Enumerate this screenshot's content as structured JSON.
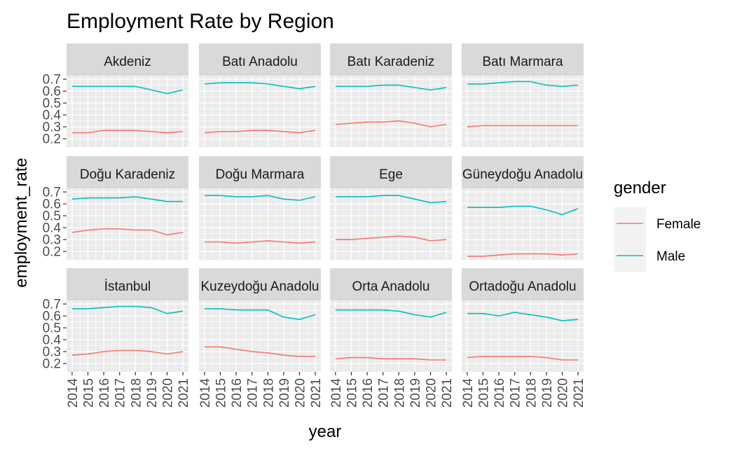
{
  "chart_data": {
    "type": "line",
    "title": "Employment Rate by Region",
    "xlabel": "year",
    "ylabel": "employment_rate",
    "x": [
      2014,
      2015,
      2016,
      2017,
      2018,
      2019,
      2020,
      2021
    ],
    "ylim": [
      0.13,
      0.73
    ],
    "yticks": [
      0.2,
      0.3,
      0.4,
      0.5,
      0.6,
      0.7
    ],
    "ytick_labels": [
      "0.2",
      "0.3",
      "0.4",
      "0.5",
      "0.6",
      "0.7"
    ],
    "grid": true,
    "legend": {
      "title": "gender",
      "position": "right",
      "entries": [
        {
          "name": "Female",
          "color": "#F8766D"
        },
        {
          "name": "Male",
          "color": "#00BFC4"
        }
      ]
    },
    "panels": [
      {
        "region": "Akdeniz",
        "Female": [
          0.25,
          0.25,
          0.27,
          0.27,
          0.27,
          0.26,
          0.25,
          0.26
        ],
        "Male": [
          0.64,
          0.64,
          0.64,
          0.64,
          0.64,
          0.61,
          0.58,
          0.61
        ]
      },
      {
        "region": "Batı Anadolu",
        "Female": [
          0.25,
          0.26,
          0.26,
          0.27,
          0.27,
          0.26,
          0.25,
          0.27
        ],
        "Male": [
          0.66,
          0.67,
          0.67,
          0.67,
          0.66,
          0.64,
          0.62,
          0.64
        ]
      },
      {
        "region": "Batı Karadeniz",
        "Female": [
          0.32,
          0.33,
          0.34,
          0.34,
          0.35,
          0.33,
          0.3,
          0.32
        ],
        "Male": [
          0.64,
          0.64,
          0.64,
          0.65,
          0.65,
          0.63,
          0.61,
          0.63
        ]
      },
      {
        "region": "Batı Marmara",
        "Female": [
          0.3,
          0.31,
          0.31,
          0.31,
          0.31,
          0.31,
          0.31,
          0.31
        ],
        "Male": [
          0.66,
          0.66,
          0.67,
          0.68,
          0.68,
          0.65,
          0.64,
          0.65
        ]
      },
      {
        "region": "Doğu Karadeniz",
        "Female": [
          0.36,
          0.38,
          0.39,
          0.39,
          0.38,
          0.38,
          0.34,
          0.36
        ],
        "Male": [
          0.64,
          0.65,
          0.65,
          0.65,
          0.66,
          0.64,
          0.62,
          0.62
        ]
      },
      {
        "region": "Doğu Marmara",
        "Female": [
          0.28,
          0.28,
          0.27,
          0.28,
          0.29,
          0.28,
          0.27,
          0.28
        ],
        "Male": [
          0.67,
          0.67,
          0.66,
          0.66,
          0.67,
          0.64,
          0.63,
          0.66
        ]
      },
      {
        "region": "Ege",
        "Female": [
          0.3,
          0.3,
          0.31,
          0.32,
          0.33,
          0.32,
          0.29,
          0.3
        ],
        "Male": [
          0.66,
          0.66,
          0.66,
          0.67,
          0.67,
          0.64,
          0.61,
          0.62
        ]
      },
      {
        "region": "Güneydoğu Anadolu",
        "Female": [
          0.16,
          0.16,
          0.17,
          0.18,
          0.18,
          0.18,
          0.17,
          0.18
        ],
        "Male": [
          0.57,
          0.57,
          0.57,
          0.58,
          0.58,
          0.55,
          0.51,
          0.56
        ]
      },
      {
        "region": "İstanbul",
        "Female": [
          0.27,
          0.28,
          0.3,
          0.31,
          0.31,
          0.3,
          0.28,
          0.3
        ],
        "Male": [
          0.66,
          0.66,
          0.67,
          0.68,
          0.68,
          0.67,
          0.62,
          0.64
        ]
      },
      {
        "region": "Kuzeydoğu Anadolu",
        "Female": [
          0.34,
          0.34,
          0.32,
          0.3,
          0.29,
          0.27,
          0.26,
          0.26
        ],
        "Male": [
          0.66,
          0.66,
          0.65,
          0.65,
          0.65,
          0.59,
          0.57,
          0.61
        ]
      },
      {
        "region": "Orta Anadolu",
        "Female": [
          0.24,
          0.25,
          0.25,
          0.24,
          0.24,
          0.24,
          0.23,
          0.23
        ],
        "Male": [
          0.65,
          0.65,
          0.65,
          0.65,
          0.64,
          0.61,
          0.59,
          0.63
        ]
      },
      {
        "region": "Ortadoğu Anadolu",
        "Female": [
          0.25,
          0.26,
          0.26,
          0.26,
          0.26,
          0.25,
          0.23,
          0.23
        ],
        "Male": [
          0.62,
          0.62,
          0.6,
          0.63,
          0.61,
          0.59,
          0.56,
          0.57
        ]
      }
    ]
  }
}
